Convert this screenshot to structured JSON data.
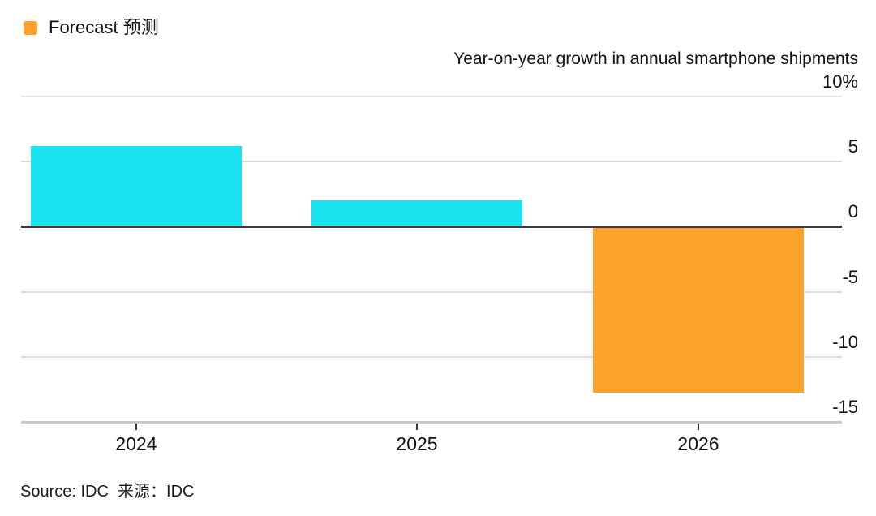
{
  "title": "Year-on-year growth in annual smartphone shipments",
  "source_note": "Source: IDC  来源：IDC",
  "colors": {
    "actual_bar": "#1BE4F1",
    "forecast_bar": "#FFA229",
    "gridline": "#DDDDDD",
    "zero_baseline": "#3B3B3B",
    "axis_line": "#C9C9C9",
    "text": "#111111"
  },
  "chart_data": {
    "type": "bar",
    "title": "Year-on-year growth in annual smartphone shipments",
    "categories": [
      "2024",
      "2025",
      "2026"
    ],
    "values": [
      6.2,
      2.0,
      -12.8
    ],
    "forecast": [
      false,
      false,
      true
    ],
    "unit": "%",
    "xlabel": "",
    "ylabel": "Year-on-year growth (%)",
    "ylim": [
      -15,
      10
    ],
    "y_tick_values": [
      10,
      5,
      0,
      -5,
      -10,
      -15
    ],
    "y_tick_labels": [
      "10%",
      "5",
      "0",
      "-5",
      "-10",
      "-15"
    ],
    "grid": true,
    "zero_baseline": true,
    "legend": {
      "position": "top-left",
      "entries": [
        {
          "label": "Forecast 预测",
          "color": "#FFA229"
        }
      ]
    },
    "bar_colors": [
      "#1BE4F1",
      "#1BE4F1",
      "#FFA229"
    ]
  }
}
